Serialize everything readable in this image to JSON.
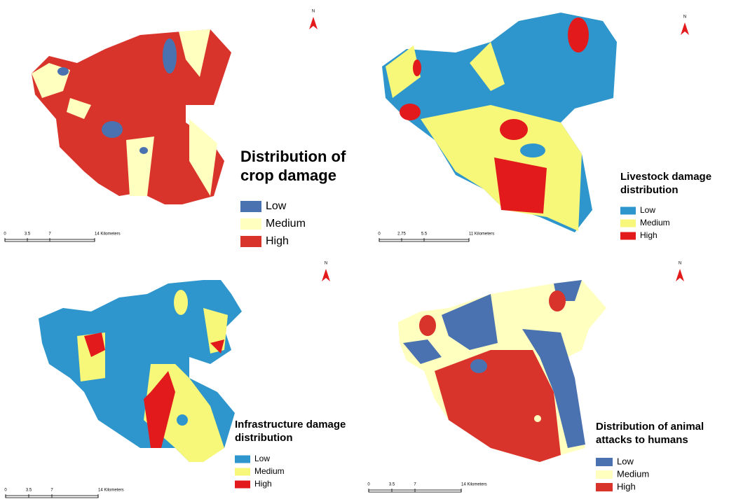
{
  "panels": [
    {
      "title_lines": [
        "Distribution of",
        "crop damage"
      ],
      "north": "N",
      "legend": [
        {
          "label": "Low",
          "color": "#4a72b0"
        },
        {
          "label": "Medium",
          "color": "#ffffc0"
        },
        {
          "label": "High",
          "color": "#d9342b"
        }
      ],
      "scale_ticks": [
        0,
        3.5,
        7,
        {
          "value": 14,
          "label": "14 Kilometers"
        }
      ]
    },
    {
      "title_lines": [
        "Livestock damage",
        "distribution"
      ],
      "north": "N",
      "legend": [
        {
          "label": "Low",
          "color": "#2e96cc"
        },
        {
          "label": "Medium",
          "color": "#f7f77a"
        },
        {
          "label": "High",
          "color": "#e31a1c"
        }
      ],
      "scale_ticks": [
        0,
        2.75,
        5.5,
        {
          "value": 11,
          "label": "11 Kilometers"
        }
      ]
    },
    {
      "title_lines": [
        "Infrastructure damage",
        "distribution"
      ],
      "north": "N",
      "legend": [
        {
          "label": "Low",
          "color": "#2e96cc"
        },
        {
          "label": "Medium",
          "color": "#f7f77a"
        },
        {
          "label": "High",
          "color": "#e31a1c"
        }
      ],
      "scale_ticks": [
        0,
        3.5,
        7,
        {
          "value": 14,
          "label": "14 Kilometers"
        }
      ]
    },
    {
      "title_lines": [
        "Distribution of animal",
        "attacks to humans"
      ],
      "north": "N",
      "legend": [
        {
          "label": "Low",
          "color": "#4a72b0"
        },
        {
          "label": "Medium",
          "color": "#ffffc0"
        },
        {
          "label": "High",
          "color": "#d9342b"
        }
      ],
      "scale_ticks": [
        0,
        3.5,
        7,
        {
          "value": 14,
          "label": "14 Kilometers"
        }
      ]
    }
  ]
}
